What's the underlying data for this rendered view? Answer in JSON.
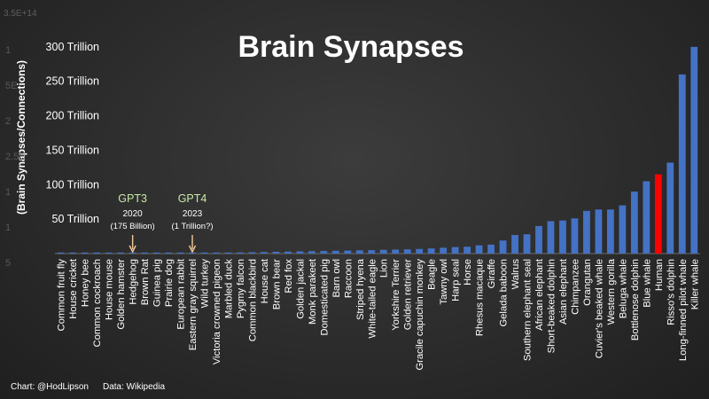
{
  "chart_data": {
    "type": "bar",
    "title": "Brain Synapses",
    "ylabel": "(Brain Synapses/Connections)",
    "ylim": [
      0,
      350
    ],
    "y_tick_labels": [
      "",
      "50 Trillion",
      "100 Trillion",
      "150 Trillion",
      "200 Trillion",
      "250 Trillion",
      "300 Trillion",
      "3.5E+14"
    ],
    "y_axis_ghost_labels": [
      "1",
      "5E",
      "2",
      "2.5E",
      "1",
      "1",
      "5"
    ],
    "grid": false,
    "categories": [
      "Common fruit fly",
      "House cricket",
      "Honey bee",
      "Common cockroach",
      "House mouse",
      "Golden hamster",
      "Hedgehog",
      "Brown Rat",
      "Guinea pig",
      "Prairie dog",
      "European rabbit",
      "Eastern gray squirrel",
      "Wild turkey",
      "Victoria crowned pigeon",
      "Marbled duck",
      "Pygmy falcon",
      "Common blackbird",
      "House cat",
      "Brown bear",
      "Red fox",
      "Golden jackal",
      "Monk parakeet",
      "Domesticated pig",
      "Barn owl",
      "Raccoon",
      "Striped hyena",
      "White-tailed eagle",
      "Lion",
      "Yorkshire Terrier",
      "Golden retriever",
      "Gracile capuchin monkey",
      "Beagle",
      "Tawny owl",
      "Harp seal",
      "Horse",
      "Rhesus macaque",
      "Giraffe",
      "Gelada baboon",
      "Walrus",
      "Southern elephant seal",
      "African elephant",
      "Short-beaked dolphin",
      "Asian elephant",
      "Chimpanzee",
      "Orangutan",
      "Cuvier's beaked whale",
      "Western gorilla",
      "Beluga whale",
      "Bottlenose dolphin",
      "Blue whale",
      "Human",
      "Risso's dolphin",
      "Long-finned pilot whale",
      "Killer whale"
    ],
    "values": [
      0.05,
      0.1,
      0.15,
      0.2,
      0.3,
      0.4,
      0.5,
      0.6,
      0.7,
      0.8,
      0.9,
      1.0,
      1.1,
      1.3,
      1.5,
      1.7,
      2.0,
      2.3,
      2.6,
      2.9,
      3.2,
      3.5,
      3.8,
      4.1,
      4.4,
      4.7,
      5.0,
      5.4,
      5.8,
      6.2,
      6.8,
      7.5,
      8.5,
      9.5,
      10,
      12,
      13,
      19,
      27,
      28,
      40,
      47,
      48,
      51,
      62,
      64,
      64,
      70,
      90,
      105,
      115,
      132,
      260,
      300
    ],
    "highlight": {
      "category": "Human",
      "color": "#ff0000"
    },
    "bar_color": "#4472c4",
    "annotations": [
      {
        "label": "GPT3",
        "year": "2020",
        "note": "(175 Billion)",
        "value": 0.175,
        "category": "Hedgehog"
      },
      {
        "label": "GPT4",
        "year": "2023",
        "note": "(1 Trillion?)",
        "value": 1,
        "category": "Eastern gray squirrel"
      }
    ],
    "annotation_color": "#c9e8a8",
    "arrow_color": "#f4c89a"
  },
  "footer": {
    "credit": "Chart: @HodLipson",
    "source": "Data: Wikipedia"
  }
}
